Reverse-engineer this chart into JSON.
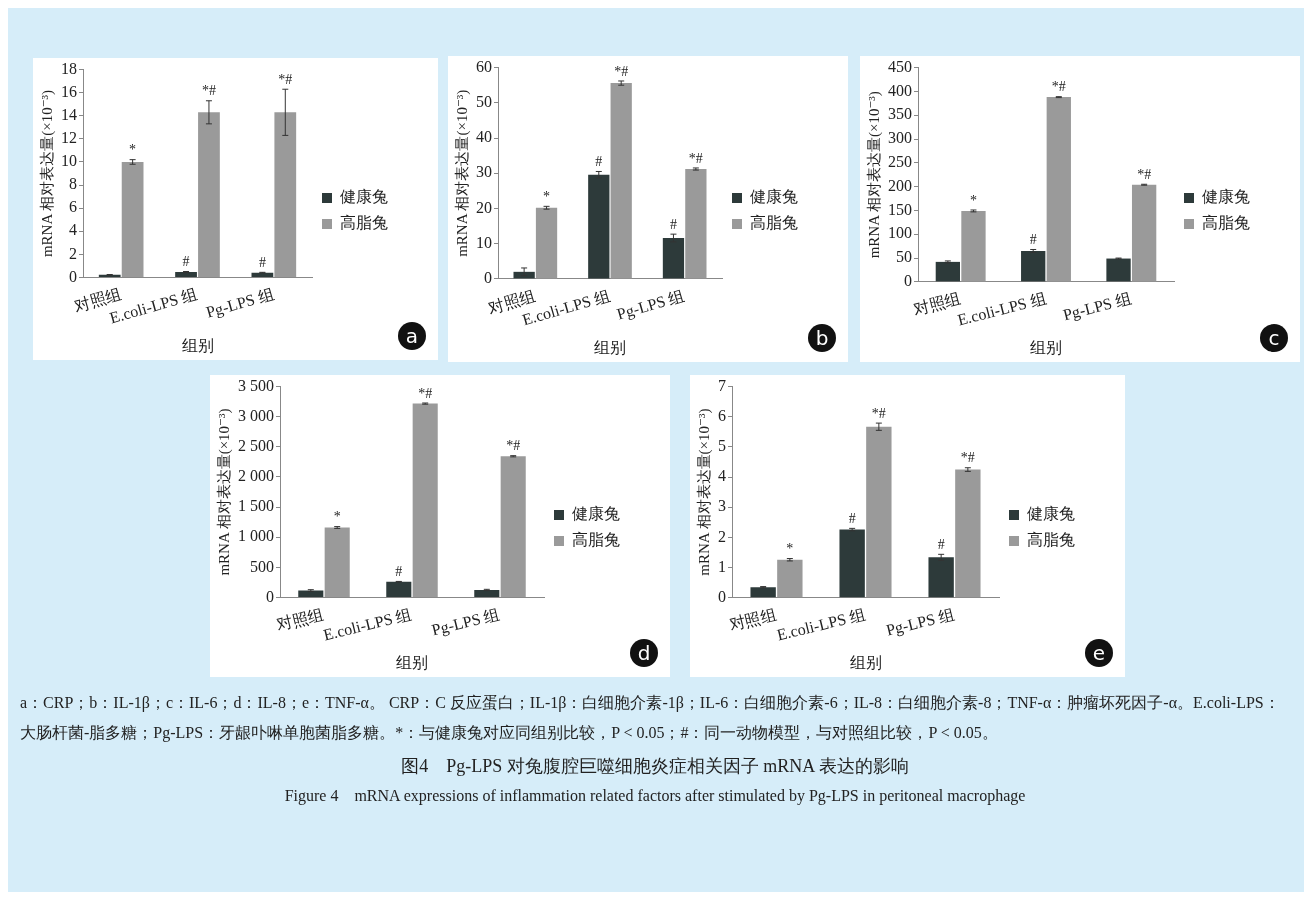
{
  "chart_data": [
    {
      "type": "bar",
      "categories": [
        "对照组",
        "E.coli-LPS 组",
        "Pg-LPS 组"
      ],
      "xlabel": "组别",
      "ylabel": "mRNA 相对表达量(×10⁻³)",
      "ylim": [
        0,
        18
      ],
      "yticks": [
        0,
        2,
        4,
        6,
        8,
        10,
        12,
        14,
        16,
        18
      ],
      "grid": false,
      "legend": "right",
      "annotations": [
        "a"
      ],
      "series": [
        {
          "name": "健康兔",
          "color": "#2d3a3a",
          "values": [
            0.22,
            0.46,
            0.41
          ],
          "errors": [
            0.03,
            0.05,
            0.03
          ],
          "value_labels": [
            null,
            "#",
            "#"
          ]
        },
        {
          "name": "高脂兔",
          "color": "#9a9a9a",
          "values": [
            10.0,
            14.3,
            14.3
          ],
          "errors": [
            0.2,
            1.0,
            2.0
          ],
          "value_labels": [
            "*",
            "*#",
            "*#"
          ]
        }
      ]
    },
    {
      "type": "bar",
      "categories": [
        "对照组",
        "E.coli-LPS 组",
        "Pg-LPS 组"
      ],
      "xlabel": "组别",
      "ylabel": "mRNA 相对表达量(×10⁻³)",
      "ylim": [
        0,
        60
      ],
      "yticks": [
        0,
        10,
        20,
        30,
        40,
        50,
        60
      ],
      "grid": false,
      "legend": "right",
      "annotations": [
        "b"
      ],
      "series": [
        {
          "name": "健康兔",
          "color": "#2d3a3a",
          "values": [
            2.0,
            29.6,
            11.6
          ],
          "errors": [
            1.1,
            0.9,
            1.1
          ],
          "value_labels": [
            null,
            "#",
            "#"
          ]
        },
        {
          "name": "高脂兔",
          "color": "#9a9a9a",
          "values": [
            20.2,
            55.6,
            31.2
          ],
          "errors": [
            0.4,
            0.6,
            0.3
          ],
          "value_labels": [
            "*",
            "*#",
            "*#"
          ]
        }
      ]
    },
    {
      "type": "bar",
      "categories": [
        "对照组",
        "E.coli-LPS 组",
        "Pg-LPS 组"
      ],
      "xlabel": "组别",
      "ylabel": "mRNA 相对表达量(×10⁻³)",
      "ylim": [
        0,
        450
      ],
      "yticks": [
        0,
        50,
        100,
        150,
        200,
        250,
        300,
        350,
        400,
        450
      ],
      "grid": false,
      "legend": "right",
      "annotations": [
        "c"
      ],
      "series": [
        {
          "name": "健康兔",
          "color": "#2d3a3a",
          "values": [
            42,
            65,
            49
          ],
          "errors": [
            2,
            3,
            1
          ],
          "value_labels": [
            null,
            "#",
            null
          ]
        },
        {
          "name": "高脂兔",
          "color": "#9a9a9a",
          "values": [
            149,
            388,
            204
          ],
          "errors": [
            2,
            1,
            1
          ],
          "value_labels": [
            "*",
            "*#",
            "*#"
          ]
        }
      ]
    },
    {
      "type": "bar",
      "categories": [
        "对照组",
        "E.coli-LPS 组",
        "Pg-LPS 组"
      ],
      "xlabel": "组别",
      "ylabel": "mRNA 相对表达量(×10⁻³)",
      "ylim": [
        0,
        3500
      ],
      "yticks": [
        0,
        500,
        {
          "value": 1000,
          "label": "1 000"
        },
        {
          "value": 1500,
          "label": "1 500"
        },
        {
          "value": 2000,
          "label": "2 000"
        },
        {
          "value": 2500,
          "label": "2 500"
        },
        {
          "value": 3000,
          "label": "3 000"
        },
        {
          "value": 3500,
          "label": "3 500"
        }
      ],
      "grid": false,
      "legend": "right",
      "annotations": [
        "d"
      ],
      "series": [
        {
          "name": "健康兔",
          "color": "#2d3a3a",
          "values": [
            115,
            262,
            126
          ],
          "errors": [
            15,
            5,
            10
          ],
          "value_labels": [
            null,
            "#",
            null
          ]
        },
        {
          "name": "高脂兔",
          "color": "#9a9a9a",
          "values": [
            1162,
            3218,
            2344
          ],
          "errors": [
            15,
            10,
            10
          ],
          "value_labels": [
            "*",
            "*#",
            "*#"
          ]
        }
      ]
    },
    {
      "type": "bar",
      "categories": [
        "对照组",
        "E.coli-LPS 组",
        "Pg-LPS 组"
      ],
      "xlabel": "组别",
      "ylabel": "mRNA 相对表达量(×10⁻³)",
      "ylim": [
        0,
        7
      ],
      "yticks": [
        0,
        1,
        2,
        3,
        4,
        5,
        6,
        7
      ],
      "grid": false,
      "legend": "right",
      "annotations": [
        "e"
      ],
      "series": [
        {
          "name": "健康兔",
          "color": "#2d3a3a",
          "values": [
            0.35,
            2.26,
            1.34
          ],
          "errors": [
            0.02,
            0.04,
            0.1
          ],
          "value_labels": [
            null,
            "#",
            "#"
          ]
        },
        {
          "name": "高脂兔",
          "color": "#9a9a9a",
          "values": [
            1.26,
            5.67,
            4.25
          ],
          "errors": [
            0.04,
            0.12,
            0.06
          ],
          "value_labels": [
            "*",
            "*#",
            "*#"
          ]
        }
      ]
    },
    {
      "type": "other",
      "title": "图4　Pg-LPS 对兔腹腔巨噬细胞炎症相关因子 mRNA 表达的影响",
      "subtitle": "Figure 4　mRNA expressions of inflammation related factors after stimulated by Pg-LPS in peritoneal macrophage",
      "annotations": [
        "a：CRP；b：IL-1β；c：IL-6；d：IL-8；e：TNF-α。 CRP：C 反应蛋白；IL-1β：白细胞介素-1β；IL-6：白细胞介素-6；IL-8：白细胞介素-8；TNF-α：肿瘤坏死因子-α。E.coli-LPS：大肠杆菌-脂多糖；Pg-LPS：牙龈卟啉单胞菌脂多糖。*：与健康兔对应同组别比较，P < 0.05；#：同一动物模型，与对照组比较，P < 0.05。"
      ]
    }
  ]
}
